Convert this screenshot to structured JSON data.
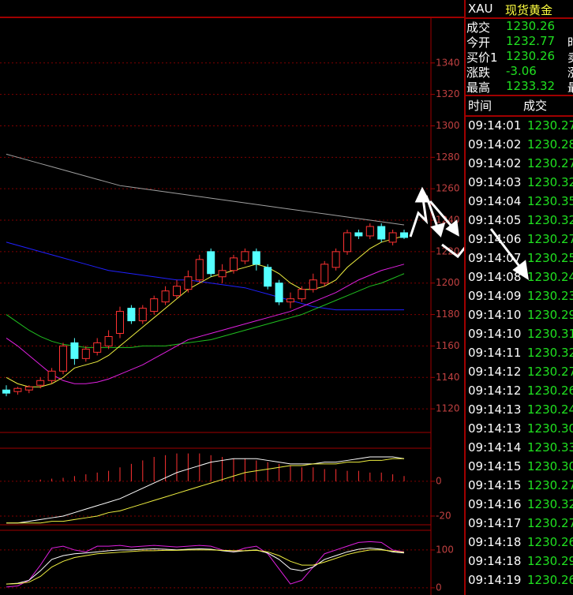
{
  "quote": {
    "symbol": "XAU",
    "name": "现货黄金",
    "fields": [
      {
        "label": "成交",
        "value": "1230.26",
        "side": ""
      },
      {
        "label": "今开",
        "value": "1232.77",
        "side": "时"
      },
      {
        "label": "买价1",
        "value": "1230.26",
        "side": "卖"
      },
      {
        "label": "涨跌",
        "value": "-3.06",
        "side": "涨"
      },
      {
        "label": "最高",
        "value": "1233.32",
        "side": "最"
      }
    ]
  },
  "trades": {
    "header": [
      "时间",
      "成交"
    ],
    "rows": [
      [
        "09:14:01",
        "1230.27"
      ],
      [
        "09:14:02",
        "1230.28"
      ],
      [
        "09:14:02",
        "1230.27"
      ],
      [
        "09:14:03",
        "1230.32"
      ],
      [
        "09:14:04",
        "1230.35"
      ],
      [
        "09:14:05",
        "1230.32"
      ],
      [
        "09:14:06",
        "1230.27"
      ],
      [
        "09:14:07",
        "1230.25"
      ],
      [
        "09:14:08",
        "1230.24"
      ],
      [
        "09:14:09",
        "1230.23"
      ],
      [
        "09:14:10",
        "1230.29"
      ],
      [
        "09:14:10",
        "1230.31"
      ],
      [
        "09:14:11",
        "1230.32"
      ],
      [
        "09:14:12",
        "1230.27"
      ],
      [
        "09:14:12",
        "1230.26"
      ],
      [
        "09:14:13",
        "1230.24"
      ],
      [
        "09:14:13",
        "1230.30"
      ],
      [
        "09:14:14",
        "1230.33"
      ],
      [
        "09:14:15",
        "1230.30"
      ],
      [
        "09:14:15",
        "1230.27"
      ],
      [
        "09:14:16",
        "1230.32"
      ],
      [
        "09:14:17",
        "1230.27"
      ],
      [
        "09:14:18",
        "1230.26"
      ],
      [
        "09:14:18",
        "1230.29"
      ],
      [
        "09:14:19",
        "1230.26"
      ]
    ]
  },
  "price_chart": {
    "type": "candlestick",
    "ylim": [
      1105,
      1369
    ],
    "yticks": [
      1120,
      1140,
      1160,
      1180,
      1200,
      1220,
      1240,
      1260,
      1280,
      1300,
      1320,
      1340
    ],
    "up_color": "#ff3232",
    "down_color": "#54ffff",
    "candles": [
      [
        1132,
        1135,
        1128,
        1130
      ],
      [
        1131,
        1134,
        1129,
        1133
      ],
      [
        1132,
        1135,
        1130,
        1134
      ],
      [
        1135,
        1140,
        1133,
        1138
      ],
      [
        1138,
        1146,
        1136,
        1144
      ],
      [
        1144,
        1162,
        1142,
        1160
      ],
      [
        1162,
        1165,
        1148,
        1152
      ],
      [
        1152,
        1160,
        1150,
        1158
      ],
      [
        1156,
        1165,
        1154,
        1162
      ],
      [
        1160,
        1170,
        1158,
        1166
      ],
      [
        1168,
        1185,
        1165,
        1182
      ],
      [
        1184,
        1186,
        1174,
        1176
      ],
      [
        1176,
        1186,
        1174,
        1184
      ],
      [
        1182,
        1192,
        1180,
        1190
      ],
      [
        1188,
        1198,
        1186,
        1195
      ],
      [
        1192,
        1202,
        1190,
        1198
      ],
      [
        1196,
        1208,
        1194,
        1204
      ],
      [
        1202,
        1218,
        1200,
        1215
      ],
      [
        1220,
        1222,
        1204,
        1206
      ],
      [
        1204,
        1212,
        1200,
        1208
      ],
      [
        1208,
        1218,
        1206,
        1216
      ],
      [
        1214,
        1222,
        1212,
        1220
      ],
      [
        1220,
        1222,
        1208,
        1212
      ],
      [
        1210,
        1212,
        1196,
        1198
      ],
      [
        1200,
        1202,
        1186,
        1188
      ],
      [
        1188,
        1194,
        1184,
        1190
      ],
      [
        1190,
        1198,
        1188,
        1196
      ],
      [
        1196,
        1206,
        1194,
        1202
      ],
      [
        1200,
        1214,
        1198,
        1212
      ],
      [
        1210,
        1222,
        1208,
        1220
      ],
      [
        1220,
        1234,
        1218,
        1232
      ],
      [
        1232,
        1234,
        1228,
        1230
      ],
      [
        1230,
        1238,
        1228,
        1236
      ],
      [
        1236,
        1238,
        1226,
        1228
      ],
      [
        1226,
        1234,
        1224,
        1232
      ],
      [
        1232,
        1234,
        1228,
        1229
      ]
    ],
    "lines": [
      {
        "color": "#a0a0a0",
        "values": [
          1282,
          1280,
          1278,
          1276,
          1274,
          1272,
          1270,
          1268,
          1266,
          1264,
          1262,
          1261,
          1260,
          1259,
          1258,
          1257,
          1256,
          1255,
          1254,
          1253,
          1252,
          1251,
          1250,
          1249,
          1248,
          1247,
          1246,
          1245,
          1244,
          1243,
          1242,
          1241,
          1240,
          1239,
          1238,
          1237
        ]
      },
      {
        "color": "#2020ff",
        "values": [
          1226,
          1224,
          1222,
          1220,
          1218,
          1216,
          1214,
          1212,
          1210,
          1208,
          1207,
          1206,
          1205,
          1204,
          1203,
          1202,
          1202,
          1201,
          1200,
          1199,
          1198,
          1197,
          1195,
          1193,
          1191,
          1189,
          1187,
          1185,
          1184,
          1183,
          1183,
          1183,
          1183,
          1183,
          1183,
          1183
        ]
      },
      {
        "color": "#20c020",
        "values": [
          1180,
          1175,
          1170,
          1166,
          1163,
          1161,
          1160,
          1159,
          1159,
          1159,
          1159,
          1159,
          1160,
          1160,
          1160,
          1161,
          1162,
          1163,
          1164,
          1166,
          1168,
          1170,
          1172,
          1174,
          1176,
          1178,
          1180,
          1183,
          1186,
          1189,
          1192,
          1195,
          1198,
          1200,
          1203,
          1206
        ]
      },
      {
        "color": "#e020e0",
        "values": [
          1165,
          1160,
          1154,
          1148,
          1142,
          1138,
          1136,
          1136,
          1137,
          1139,
          1142,
          1145,
          1148,
          1152,
          1156,
          1160,
          1164,
          1166,
          1168,
          1170,
          1172,
          1174,
          1176,
          1178,
          1180,
          1182,
          1185,
          1188,
          1191,
          1194,
          1198,
          1202,
          1205,
          1208,
          1210,
          1212
        ]
      },
      {
        "color": "#f0f040",
        "values": [
          1140,
          1136,
          1134,
          1134,
          1136,
          1140,
          1146,
          1148,
          1150,
          1154,
          1160,
          1166,
          1172,
          1178,
          1184,
          1190,
          1196,
          1200,
          1204,
          1206,
          1208,
          1210,
          1212,
          1210,
          1206,
          1200,
          1196,
          1196,
          1198,
          1202,
          1210,
          1216,
          1222,
          1226,
          1228,
          1230
        ]
      }
    ]
  },
  "macd_chart": {
    "type": "macd",
    "ylim": [
      -25,
      19
    ],
    "yticks": [
      -20,
      0
    ],
    "bar_color": "#ff3232",
    "bars": [
      0,
      0,
      0.5,
      1,
      1.5,
      2,
      3,
      4,
      5,
      6,
      8,
      10,
      12,
      14,
      15,
      16,
      16,
      16,
      15,
      14,
      13,
      13,
      12,
      11,
      10,
      9,
      8,
      8,
      7,
      7,
      6,
      6,
      5,
      5,
      4,
      3
    ],
    "lines": [
      {
        "color": "#ffffff",
        "values": [
          -24,
          -24,
          -23,
          -22,
          -21,
          -20,
          -18,
          -16,
          -14,
          -12,
          -10,
          -7,
          -4,
          -1,
          2,
          5,
          7,
          9,
          11,
          12,
          13,
          13,
          13,
          12,
          11,
          10,
          10,
          10,
          11,
          11,
          12,
          13,
          14,
          14,
          14,
          13
        ]
      },
      {
        "color": "#f0f040",
        "values": [
          -24,
          -24,
          -24,
          -24,
          -23,
          -23,
          -22,
          -21,
          -20,
          -18,
          -17,
          -15,
          -13,
          -11,
          -9,
          -7,
          -5,
          -3,
          -1,
          1,
          3,
          5,
          6,
          7,
          8,
          9,
          9,
          10,
          10,
          10,
          11,
          11,
          12,
          12,
          13,
          13
        ]
      }
    ]
  },
  "kdj_chart": {
    "type": "kdj",
    "ylim": [
      -19,
      152
    ],
    "yticks": [
      0,
      100
    ],
    "lines": [
      {
        "color": "#e020e0",
        "values": [
          2,
          5,
          20,
          60,
          105,
          110,
          100,
          95,
          110,
          110,
          112,
          108,
          110,
          112,
          110,
          108,
          110,
          112,
          110,
          100,
          95,
          105,
          110,
          90,
          50,
          10,
          20,
          55,
          90,
          100,
          110,
          120,
          122,
          120,
          100,
          95
        ]
      },
      {
        "color": "#ffffff",
        "values": [
          10,
          12,
          20,
          45,
          75,
          85,
          90,
          92,
          95,
          98,
          100,
          100,
          102,
          103,
          102,
          100,
          102,
          103,
          102,
          98,
          95,
          98,
          100,
          92,
          75,
          50,
          45,
          55,
          75,
          85,
          95,
          102,
          105,
          102,
          95,
          92
        ]
      },
      {
        "color": "#f0f040",
        "values": [
          10,
          11,
          15,
          30,
          55,
          70,
          80,
          85,
          90,
          92,
          94,
          96,
          98,
          98,
          99,
          99,
          100,
          100,
          100,
          99,
          98,
          98,
          99,
          95,
          85,
          70,
          60,
          60,
          68,
          78,
          88,
          95,
          100,
          100,
          97,
          94
        ]
      }
    ]
  }
}
